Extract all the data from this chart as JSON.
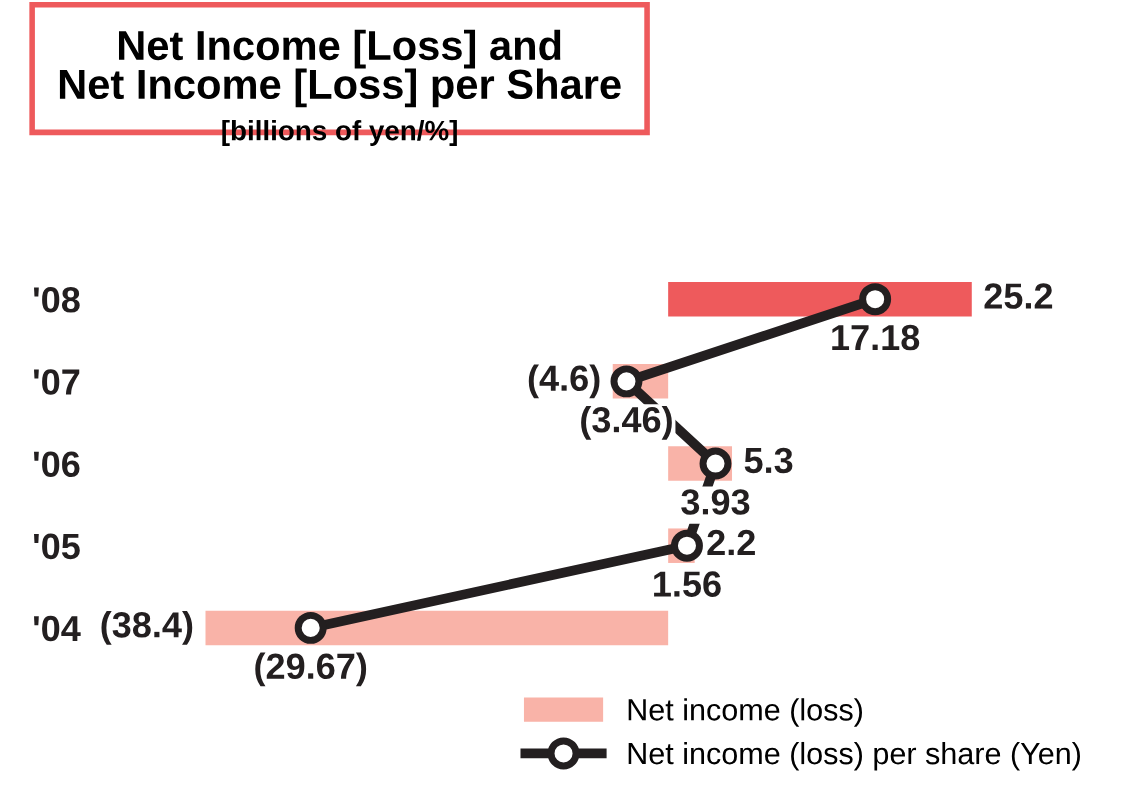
{
  "chart_data": {
    "type": "bar",
    "orientation": "horizontal",
    "title": "Net Income [Loss] and\nNet Income [Loss] per Share",
    "subtitle": "[billions of yen/%]",
    "categories": [
      "'08",
      "'07",
      "'06",
      "'05",
      "'04"
    ],
    "series": [
      {
        "name": "Net income (loss)",
        "values": [
          25.2,
          -4.6,
          5.3,
          2.2,
          -38.4
        ],
        "colors": [
          "#ee5a5c",
          "#f9b3a8",
          "#f9b3a8",
          "#f9b3a8",
          "#f9b3a8"
        ],
        "value_labels": [
          "25.2",
          "(4.6)",
          "5.3",
          "2.2",
          "(38.4)"
        ]
      },
      {
        "name": "Net income (loss) per share (Yen)",
        "type": "line",
        "color": "#231f20",
        "marker": "circle",
        "values": [
          17.18,
          -3.46,
          3.93,
          1.56,
          -29.67
        ],
        "value_labels": [
          "17.18",
          "(3.46)",
          "3.93",
          "1.56",
          "(29.67)"
        ]
      }
    ],
    "legend": "bottom right"
  }
}
